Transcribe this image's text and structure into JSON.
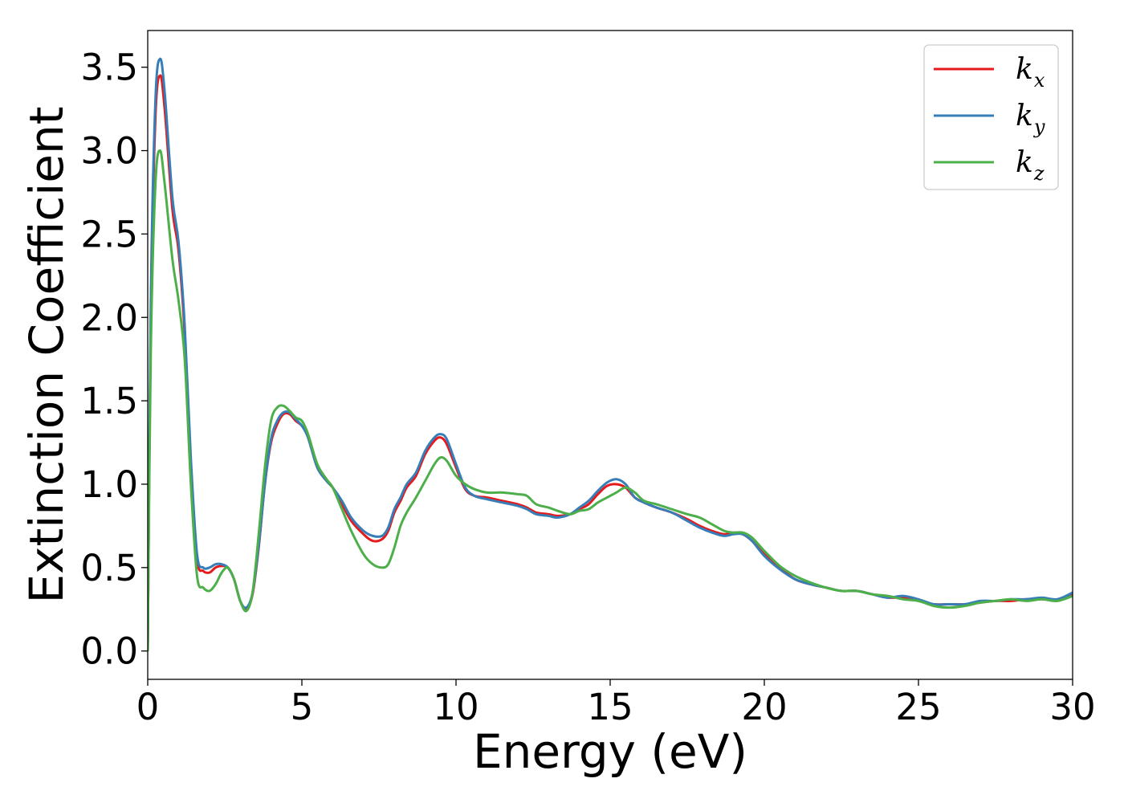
{
  "chart_data": {
    "type": "line",
    "xlabel": "Energy (eV)",
    "ylabel": "Extinction Coefficient",
    "xlim": [
      0,
      30
    ],
    "ylim": [
      -0.17,
      3.72
    ],
    "xticks": [
      0,
      5,
      10,
      15,
      20,
      25,
      30
    ],
    "xtick_labels": [
      "0",
      "5",
      "10",
      "15",
      "20",
      "25",
      "30"
    ],
    "yticks": [
      0.0,
      0.5,
      1.0,
      1.5,
      2.0,
      2.5,
      3.0,
      3.5
    ],
    "ytick_labels": [
      "0.0",
      "0.5",
      "1.0",
      "1.5",
      "2.0",
      "2.5",
      "3.0",
      "3.5"
    ],
    "grid": false,
    "legend_position": "top-right",
    "series": [
      {
        "name": "k",
        "subscript": "x",
        "color": "#e41a1c",
        "x": [
          0,
          0.1,
          0.25,
          0.4,
          0.55,
          0.8,
          1.0,
          1.2,
          1.4,
          1.6,
          1.8,
          2.0,
          2.2,
          2.4,
          2.6,
          2.8,
          3.0,
          3.2,
          3.4,
          3.6,
          3.8,
          4.0,
          4.2,
          4.4,
          4.6,
          4.8,
          5.0,
          5.2,
          5.5,
          5.8,
          6.0,
          6.3,
          6.6,
          7.0,
          7.3,
          7.6,
          7.8,
          8.0,
          8.2,
          8.4,
          8.7,
          9.0,
          9.3,
          9.5,
          9.7,
          10.0,
          10.3,
          10.6,
          11.0,
          11.5,
          12.0,
          12.3,
          12.6,
          13.0,
          13.3,
          13.7,
          14.0,
          14.3,
          14.6,
          14.9,
          15.2,
          15.5,
          15.8,
          16.1,
          16.5,
          17.0,
          17.5,
          17.9,
          18.3,
          18.7,
          19.0,
          19.3,
          19.6,
          20.0,
          20.5,
          21.0,
          21.5,
          22.0,
          22.5,
          23.0,
          23.5,
          24.0,
          24.5,
          25.0,
          25.5,
          26.0,
          26.5,
          27.0,
          27.5,
          28.0,
          28.5,
          29.0,
          29.5,
          30.0
        ],
        "y": [
          0.0,
          2.0,
          3.2,
          3.45,
          3.25,
          2.65,
          2.4,
          1.9,
          1.1,
          0.55,
          0.48,
          0.47,
          0.5,
          0.51,
          0.5,
          0.43,
          0.3,
          0.25,
          0.34,
          0.62,
          1.0,
          1.25,
          1.36,
          1.42,
          1.42,
          1.38,
          1.35,
          1.28,
          1.1,
          1.02,
          0.98,
          0.88,
          0.78,
          0.7,
          0.66,
          0.67,
          0.72,
          0.83,
          0.9,
          0.98,
          1.05,
          1.18,
          1.26,
          1.28,
          1.24,
          1.1,
          0.97,
          0.93,
          0.92,
          0.9,
          0.88,
          0.86,
          0.83,
          0.82,
          0.81,
          0.82,
          0.85,
          0.88,
          0.94,
          0.99,
          1.0,
          0.98,
          0.92,
          0.89,
          0.86,
          0.83,
          0.79,
          0.75,
          0.72,
          0.7,
          0.71,
          0.7,
          0.66,
          0.58,
          0.5,
          0.43,
          0.4,
          0.38,
          0.36,
          0.36,
          0.34,
          0.32,
          0.32,
          0.3,
          0.28,
          0.28,
          0.28,
          0.29,
          0.3,
          0.3,
          0.31,
          0.31,
          0.31,
          0.34
        ]
      },
      {
        "name": "k",
        "subscript": "y",
        "color": "#377eb8",
        "x": [
          0,
          0.1,
          0.25,
          0.4,
          0.55,
          0.8,
          1.0,
          1.2,
          1.4,
          1.6,
          1.8,
          2.0,
          2.2,
          2.4,
          2.6,
          2.8,
          3.0,
          3.2,
          3.4,
          3.6,
          3.8,
          4.0,
          4.2,
          4.4,
          4.6,
          4.8,
          5.0,
          5.2,
          5.5,
          5.8,
          6.0,
          6.3,
          6.6,
          7.0,
          7.3,
          7.6,
          7.8,
          8.0,
          8.2,
          8.4,
          8.7,
          9.0,
          9.3,
          9.5,
          9.7,
          10.0,
          10.3,
          10.6,
          11.0,
          11.5,
          12.0,
          12.3,
          12.6,
          13.0,
          13.3,
          13.7,
          14.0,
          14.3,
          14.6,
          14.9,
          15.2,
          15.5,
          15.8,
          16.1,
          16.5,
          17.0,
          17.5,
          17.9,
          18.3,
          18.7,
          19.0,
          19.3,
          19.6,
          20.0,
          20.5,
          21.0,
          21.5,
          22.0,
          22.5,
          23.0,
          23.5,
          24.0,
          24.5,
          25.0,
          25.5,
          26.0,
          26.5,
          27.0,
          27.5,
          28.0,
          28.5,
          29.0,
          29.5,
          30.0
        ],
        "y": [
          0.0,
          2.1,
          3.3,
          3.55,
          3.35,
          2.72,
          2.45,
          1.95,
          1.15,
          0.58,
          0.5,
          0.5,
          0.52,
          0.52,
          0.5,
          0.43,
          0.3,
          0.26,
          0.35,
          0.63,
          1.0,
          1.27,
          1.38,
          1.43,
          1.43,
          1.39,
          1.35,
          1.28,
          1.1,
          1.02,
          0.98,
          0.9,
          0.8,
          0.72,
          0.69,
          0.69,
          0.74,
          0.85,
          0.92,
          1.0,
          1.07,
          1.2,
          1.28,
          1.3,
          1.27,
          1.12,
          0.98,
          0.93,
          0.91,
          0.89,
          0.87,
          0.85,
          0.82,
          0.81,
          0.8,
          0.82,
          0.86,
          0.9,
          0.96,
          1.01,
          1.03,
          1.0,
          0.92,
          0.89,
          0.86,
          0.83,
          0.78,
          0.74,
          0.71,
          0.69,
          0.7,
          0.7,
          0.66,
          0.57,
          0.49,
          0.43,
          0.4,
          0.38,
          0.36,
          0.36,
          0.34,
          0.32,
          0.33,
          0.31,
          0.28,
          0.28,
          0.28,
          0.3,
          0.3,
          0.31,
          0.31,
          0.32,
          0.31,
          0.35
        ]
      },
      {
        "name": "k",
        "subscript": "z",
        "color": "#4daf4a",
        "x": [
          0,
          0.1,
          0.25,
          0.4,
          0.55,
          0.8,
          1.0,
          1.2,
          1.4,
          1.6,
          1.8,
          2.0,
          2.2,
          2.4,
          2.6,
          2.8,
          3.0,
          3.2,
          3.4,
          3.6,
          3.8,
          4.0,
          4.2,
          4.4,
          4.6,
          4.8,
          5.0,
          5.2,
          5.5,
          5.8,
          6.0,
          6.3,
          6.6,
          7.0,
          7.3,
          7.6,
          7.8,
          8.0,
          8.2,
          8.4,
          8.7,
          9.0,
          9.3,
          9.5,
          9.7,
          10.0,
          10.3,
          10.6,
          11.0,
          11.5,
          12.0,
          12.3,
          12.6,
          13.0,
          13.3,
          13.7,
          14.0,
          14.3,
          14.6,
          14.9,
          15.2,
          15.5,
          15.8,
          16.1,
          16.5,
          17.0,
          17.5,
          17.9,
          18.3,
          18.7,
          19.0,
          19.3,
          19.6,
          20.0,
          20.5,
          21.0,
          21.5,
          22.0,
          22.5,
          23.0,
          23.5,
          24.0,
          24.5,
          25.0,
          25.5,
          26.0,
          26.5,
          27.0,
          27.5,
          28.0,
          28.5,
          29.0,
          29.5,
          30.0
        ],
        "y": [
          0.0,
          1.8,
          2.8,
          3.0,
          2.8,
          2.35,
          2.1,
          1.75,
          1.0,
          0.45,
          0.38,
          0.36,
          0.4,
          0.47,
          0.5,
          0.43,
          0.3,
          0.24,
          0.35,
          0.7,
          1.1,
          1.38,
          1.46,
          1.47,
          1.44,
          1.4,
          1.38,
          1.3,
          1.12,
          1.03,
          0.98,
          0.85,
          0.72,
          0.58,
          0.52,
          0.5,
          0.52,
          0.62,
          0.75,
          0.83,
          0.92,
          1.02,
          1.12,
          1.16,
          1.14,
          1.05,
          1.0,
          0.97,
          0.95,
          0.95,
          0.94,
          0.93,
          0.88,
          0.86,
          0.84,
          0.82,
          0.84,
          0.85,
          0.89,
          0.92,
          0.95,
          0.98,
          0.95,
          0.9,
          0.88,
          0.85,
          0.82,
          0.8,
          0.76,
          0.72,
          0.71,
          0.71,
          0.68,
          0.6,
          0.51,
          0.45,
          0.41,
          0.38,
          0.36,
          0.36,
          0.34,
          0.33,
          0.31,
          0.3,
          0.27,
          0.26,
          0.27,
          0.29,
          0.3,
          0.31,
          0.3,
          0.31,
          0.3,
          0.33
        ]
      }
    ]
  }
}
